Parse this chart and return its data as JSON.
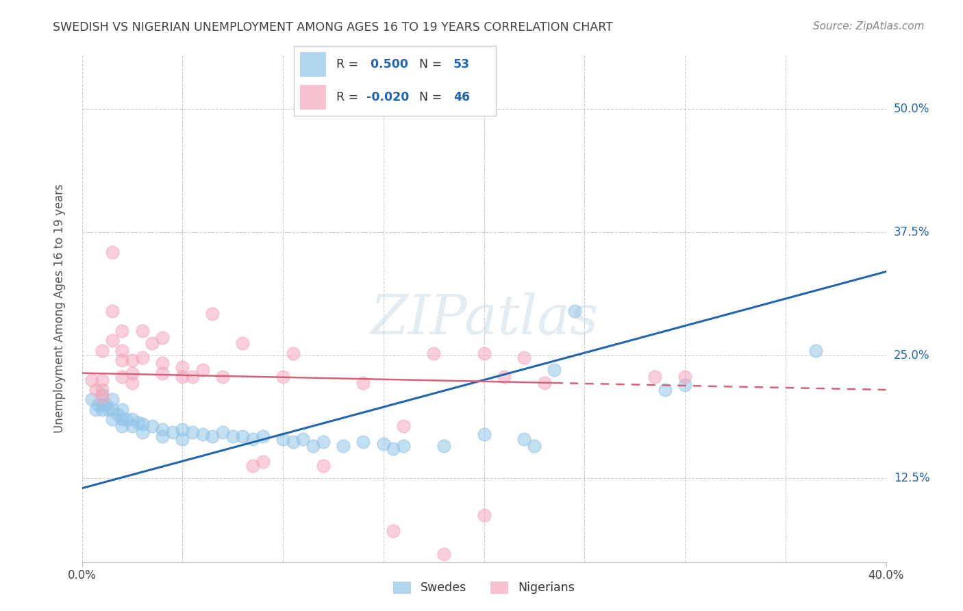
{
  "title": "SWEDISH VS NIGERIAN UNEMPLOYMENT AMONG AGES 16 TO 19 YEARS CORRELATION CHART",
  "source": "Source: ZipAtlas.com",
  "ylabel": "Unemployment Among Ages 16 to 19 years",
  "xlim": [
    0.0,
    0.4
  ],
  "ylim": [
    0.04,
    0.555
  ],
  "yticks": [
    0.125,
    0.25,
    0.375,
    0.5
  ],
  "ytick_labels": [
    "12.5%",
    "25.0%",
    "37.5%",
    "50.0%"
  ],
  "xtick_labels_show": [
    "0.0%",
    "40.0%"
  ],
  "xtick_positions_show": [
    0.0,
    0.4
  ],
  "xtick_minor": [
    0.05,
    0.1,
    0.15,
    0.2,
    0.25,
    0.3,
    0.35
  ],
  "legend_sweden": {
    "r": "0.500",
    "n": "53"
  },
  "legend_nigeria": {
    "r": "-0.020",
    "n": "46"
  },
  "sweden_color": "#92C5E8",
  "nigeria_color": "#F4A8BC",
  "sweden_line_color": "#2166AC",
  "nigeria_line_color": "#D6607A",
  "background_color": "#FFFFFF",
  "grid_color": "#CCCCCC",
  "title_color": "#444444",
  "label_color": "#2166AC",
  "watermark": "ZIPatlas",
  "sweden_points": [
    [
      0.005,
      0.205
    ],
    [
      0.007,
      0.195
    ],
    [
      0.008,
      0.2
    ],
    [
      0.01,
      0.21
    ],
    [
      0.01,
      0.2
    ],
    [
      0.01,
      0.195
    ],
    [
      0.012,
      0.2
    ],
    [
      0.013,
      0.195
    ],
    [
      0.015,
      0.205
    ],
    [
      0.015,
      0.195
    ],
    [
      0.015,
      0.185
    ],
    [
      0.018,
      0.19
    ],
    [
      0.02,
      0.195
    ],
    [
      0.02,
      0.185
    ],
    [
      0.02,
      0.178
    ],
    [
      0.022,
      0.185
    ],
    [
      0.025,
      0.185
    ],
    [
      0.025,
      0.178
    ],
    [
      0.028,
      0.182
    ],
    [
      0.03,
      0.18
    ],
    [
      0.03,
      0.172
    ],
    [
      0.035,
      0.178
    ],
    [
      0.04,
      0.175
    ],
    [
      0.04,
      0.168
    ],
    [
      0.045,
      0.172
    ],
    [
      0.05,
      0.175
    ],
    [
      0.05,
      0.165
    ],
    [
      0.055,
      0.172
    ],
    [
      0.06,
      0.17
    ],
    [
      0.065,
      0.168
    ],
    [
      0.07,
      0.172
    ],
    [
      0.075,
      0.168
    ],
    [
      0.08,
      0.168
    ],
    [
      0.085,
      0.165
    ],
    [
      0.09,
      0.168
    ],
    [
      0.1,
      0.165
    ],
    [
      0.105,
      0.162
    ],
    [
      0.11,
      0.165
    ],
    [
      0.115,
      0.158
    ],
    [
      0.12,
      0.162
    ],
    [
      0.13,
      0.158
    ],
    [
      0.14,
      0.162
    ],
    [
      0.15,
      0.16
    ],
    [
      0.155,
      0.155
    ],
    [
      0.16,
      0.158
    ],
    [
      0.18,
      0.158
    ],
    [
      0.2,
      0.17
    ],
    [
      0.22,
      0.165
    ],
    [
      0.225,
      0.158
    ],
    [
      0.235,
      0.235
    ],
    [
      0.245,
      0.295
    ],
    [
      0.29,
      0.215
    ],
    [
      0.3,
      0.22
    ],
    [
      0.365,
      0.255
    ]
  ],
  "nigeria_points": [
    [
      0.005,
      0.225
    ],
    [
      0.007,
      0.215
    ],
    [
      0.01,
      0.255
    ],
    [
      0.01,
      0.225
    ],
    [
      0.01,
      0.215
    ],
    [
      0.01,
      0.208
    ],
    [
      0.015,
      0.355
    ],
    [
      0.015,
      0.295
    ],
    [
      0.015,
      0.265
    ],
    [
      0.02,
      0.275
    ],
    [
      0.02,
      0.255
    ],
    [
      0.02,
      0.245
    ],
    [
      0.02,
      0.228
    ],
    [
      0.025,
      0.245
    ],
    [
      0.025,
      0.232
    ],
    [
      0.025,
      0.222
    ],
    [
      0.03,
      0.275
    ],
    [
      0.03,
      0.248
    ],
    [
      0.035,
      0.262
    ],
    [
      0.04,
      0.268
    ],
    [
      0.04,
      0.242
    ],
    [
      0.04,
      0.232
    ],
    [
      0.05,
      0.238
    ],
    [
      0.05,
      0.228
    ],
    [
      0.055,
      0.228
    ],
    [
      0.06,
      0.235
    ],
    [
      0.065,
      0.292
    ],
    [
      0.07,
      0.228
    ],
    [
      0.08,
      0.262
    ],
    [
      0.085,
      0.138
    ],
    [
      0.09,
      0.142
    ],
    [
      0.1,
      0.228
    ],
    [
      0.105,
      0.252
    ],
    [
      0.12,
      0.138
    ],
    [
      0.14,
      0.222
    ],
    [
      0.155,
      0.072
    ],
    [
      0.16,
      0.178
    ],
    [
      0.175,
      0.252
    ],
    [
      0.2,
      0.252
    ],
    [
      0.21,
      0.228
    ],
    [
      0.22,
      0.248
    ],
    [
      0.23,
      0.222
    ],
    [
      0.285,
      0.228
    ],
    [
      0.3,
      0.228
    ],
    [
      0.18,
      0.048
    ],
    [
      0.2,
      0.088
    ]
  ],
  "sweden_trend": [
    0.0,
    0.115,
    0.4,
    0.335
  ],
  "nigeria_trend_solid": [
    0.0,
    0.232,
    0.235,
    0.222
  ],
  "nigeria_trend_dashed": [
    0.235,
    0.222,
    0.4,
    0.215
  ]
}
